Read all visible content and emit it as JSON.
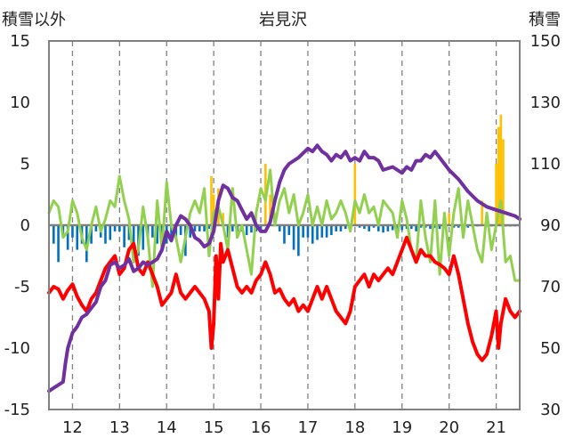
{
  "chart_data": {
    "type": "line",
    "title": "岩見沢",
    "ylabel_left": "積雪以外",
    "ylabel_right": "積雪",
    "xlim": [
      11.5,
      21.5
    ],
    "ylim_left": [
      -15,
      15
    ],
    "ylim_right": [
      30,
      150
    ],
    "x_ticks": [
      12,
      13,
      14,
      15,
      16,
      17,
      18,
      19,
      20,
      21
    ],
    "y_ticks_left": [
      15,
      10,
      5,
      0,
      -5,
      -10,
      -15
    ],
    "y_ticks_right": [
      150,
      130,
      110,
      90,
      70,
      50,
      30
    ],
    "grid": {
      "vertical": "dashed",
      "horizontal": "none"
    },
    "colors": {
      "snow_depth": "#7030a0",
      "temperature": "#ff0000",
      "green_series": "#92d050",
      "bars_negative": "#0070c0",
      "bars_positive": "#ffc000",
      "zero_line": "#7f7f7f",
      "frame": "#808080",
      "grid": "#808080"
    },
    "series": [
      {
        "axis": "right",
        "color": "purple",
        "x": [
          11.5,
          11.6,
          11.7,
          11.8,
          11.85,
          11.9,
          12.0,
          12.1,
          12.2,
          12.3,
          12.4,
          12.5,
          12.6,
          12.7,
          12.8,
          12.9,
          13.0,
          13.1,
          13.2,
          13.3,
          13.4,
          13.5,
          13.6,
          13.7,
          13.8,
          13.9,
          14.0,
          14.1,
          14.2,
          14.3,
          14.4,
          14.5,
          14.6,
          14.7,
          14.8,
          14.9,
          15.0,
          15.1,
          15.2,
          15.3,
          15.4,
          15.5,
          15.6,
          15.7,
          15.8,
          15.9,
          16.0,
          16.1,
          16.2,
          16.3,
          16.4,
          16.5,
          16.6,
          16.8,
          17.0,
          17.1,
          17.2,
          17.3,
          17.4,
          17.5,
          17.6,
          17.7,
          17.8,
          17.9,
          18.0,
          18.1,
          18.2,
          18.3,
          18.4,
          18.5,
          18.6,
          18.8,
          19.0,
          19.1,
          19.2,
          19.3,
          19.4,
          19.5,
          19.6,
          19.7,
          19.8,
          19.9,
          20.0,
          20.2,
          20.4,
          20.6,
          20.8,
          21.0,
          21.2,
          21.4,
          21.5
        ],
        "y": [
          36,
          37,
          38,
          39,
          45,
          50,
          55,
          57,
          60,
          61,
          63,
          65,
          70,
          72,
          77,
          78,
          76,
          77,
          79,
          75,
          76,
          78,
          77,
          78,
          79,
          82,
          88,
          85,
          90,
          93,
          92,
          90,
          86,
          85,
          83,
          84,
          88,
          98,
          103,
          102,
          99,
          98,
          95,
          92,
          94,
          90,
          88,
          88,
          91,
          98,
          104,
          108,
          110,
          112,
          115,
          114,
          116,
          114,
          113,
          111,
          113,
          112,
          114,
          111,
          112,
          111,
          114,
          112,
          112,
          111,
          108,
          109,
          107,
          109,
          108,
          111,
          111,
          113,
          112,
          114,
          112,
          110,
          108,
          105,
          101,
          98,
          96,
          95,
          94,
          93,
          92
        ]
      },
      {
        "axis": "left",
        "color": "red",
        "x": [
          11.5,
          11.6,
          11.7,
          11.8,
          11.9,
          12.0,
          12.1,
          12.2,
          12.3,
          12.4,
          12.5,
          12.6,
          12.7,
          12.8,
          12.9,
          13.0,
          13.1,
          13.2,
          13.3,
          13.4,
          13.5,
          13.6,
          13.7,
          13.8,
          13.9,
          14.0,
          14.1,
          14.2,
          14.3,
          14.4,
          14.5,
          14.6,
          14.7,
          14.8,
          14.9,
          14.95,
          15.0,
          15.05,
          15.1,
          15.15,
          15.2,
          15.3,
          15.4,
          15.5,
          15.6,
          15.7,
          15.8,
          15.9,
          16.0,
          16.1,
          16.2,
          16.3,
          16.4,
          16.5,
          16.6,
          16.7,
          16.8,
          16.9,
          17.0,
          17.1,
          17.2,
          17.3,
          17.4,
          17.5,
          17.6,
          17.7,
          17.8,
          17.9,
          18.0,
          18.1,
          18.2,
          18.3,
          18.4,
          18.5,
          18.6,
          18.7,
          18.8,
          18.9,
          19.0,
          19.1,
          19.2,
          19.3,
          19.4,
          19.5,
          19.6,
          19.7,
          19.8,
          19.9,
          20.0,
          20.1,
          20.2,
          20.3,
          20.4,
          20.5,
          20.6,
          20.7,
          20.8,
          20.9,
          21.0,
          21.05,
          21.1,
          21.2,
          21.3,
          21.4,
          21.5
        ],
        "y": [
          -5.5,
          -5,
          -5.2,
          -6,
          -5.3,
          -4.8,
          -5.8,
          -6.5,
          -7,
          -6,
          -5.5,
          -4.5,
          -3.5,
          -3,
          -2.5,
          -4,
          -3.5,
          -2,
          -1.5,
          -3.5,
          -4,
          -3,
          -4,
          -5,
          -6.5,
          -6,
          -5.5,
          -4,
          -5.5,
          -6,
          -5.5,
          -5,
          -5.5,
          -6,
          -7,
          -10,
          -8,
          -2.5,
          -6,
          -1.5,
          -3,
          -2,
          -3.5,
          -5,
          -5.5,
          -5,
          -5.5,
          -4.5,
          -4,
          -3,
          -4,
          -5.5,
          -5.2,
          -6,
          -6.5,
          -6,
          -7,
          -6.5,
          -7,
          -6,
          -5,
          -6,
          -5,
          -6,
          -7,
          -7.5,
          -8,
          -7,
          -5,
          -4.5,
          -4,
          -5,
          -4,
          -4.5,
          -4,
          -3.5,
          -4,
          -3,
          -2,
          -1,
          -2,
          -3,
          -2,
          -2.5,
          -2.5,
          -3,
          -3.2,
          -3.5,
          -4,
          -2.5,
          -4,
          -6,
          -8,
          -9.5,
          -10.5,
          -11,
          -10.5,
          -9,
          -7,
          -10,
          -8,
          -6,
          -7,
          -7.5,
          -7
        ]
      },
      {
        "axis": "left",
        "color": "green",
        "x": [
          11.5,
          11.6,
          11.7,
          11.8,
          11.9,
          12.0,
          12.1,
          12.2,
          12.3,
          12.4,
          12.5,
          12.6,
          12.7,
          12.8,
          12.9,
          13.0,
          13.1,
          13.2,
          13.3,
          13.4,
          13.5,
          13.6,
          13.7,
          13.8,
          13.9,
          14.0,
          14.1,
          14.2,
          14.3,
          14.4,
          14.5,
          14.6,
          14.7,
          14.8,
          14.9,
          15.0,
          15.1,
          15.2,
          15.3,
          15.4,
          15.5,
          15.6,
          15.7,
          15.8,
          15.9,
          16.0,
          16.1,
          16.2,
          16.3,
          16.4,
          16.5,
          16.6,
          16.7,
          16.8,
          16.9,
          17.0,
          17.1,
          17.2,
          17.3,
          17.4,
          17.5,
          17.6,
          17.7,
          17.8,
          17.9,
          18.0,
          18.1,
          18.2,
          18.3,
          18.4,
          18.5,
          18.6,
          18.7,
          18.8,
          18.9,
          19.0,
          19.1,
          19.2,
          19.3,
          19.4,
          19.5,
          19.6,
          19.7,
          19.8,
          19.9,
          20.0,
          20.1,
          20.2,
          20.3,
          20.4,
          20.5,
          20.6,
          20.7,
          20.8,
          20.9,
          21.0,
          21.1,
          21.2,
          21.3,
          21.4,
          21.5
        ],
        "y": [
          1,
          2,
          1.5,
          -1,
          -0.5,
          2,
          1,
          -1,
          -2,
          0,
          1.5,
          -0.5,
          0.5,
          2,
          1.5,
          4,
          2,
          0.5,
          -3,
          -2,
          1.5,
          -1,
          -5,
          2,
          -2,
          3.5,
          0,
          -1,
          -3,
          -1,
          1,
          2,
          1,
          3,
          -2.5,
          1,
          1.5,
          0,
          -2,
          3,
          -1,
          0,
          -2,
          -4,
          1,
          3,
          2,
          4.5,
          0,
          2,
          3,
          1,
          2.5,
          0,
          1,
          2.5,
          0,
          1.5,
          0,
          2,
          0.5,
          1,
          2,
          1,
          -0.5,
          2,
          1,
          2.5,
          1,
          1.5,
          0,
          2,
          1.5,
          1,
          -1,
          2,
          0.5,
          -2,
          -3,
          2,
          -1,
          -3,
          2,
          -4,
          1,
          -2.5,
          1,
          3,
          -1,
          2,
          0,
          -2,
          -3,
          1,
          -2,
          0,
          2,
          -3,
          -2.5,
          -4.5,
          -4.5
        ]
      }
    ],
    "bars": {
      "axis": "left",
      "x": [
        11.6,
        11.7,
        11.8,
        11.9,
        12.0,
        12.1,
        12.2,
        12.3,
        12.4,
        12.5,
        12.6,
        12.7,
        12.8,
        12.9,
        13.0,
        13.1,
        13.2,
        13.3,
        13.4,
        13.5,
        13.6,
        13.7,
        13.8,
        13.9,
        14.0,
        14.1,
        14.2,
        14.3,
        14.4,
        14.5,
        14.6,
        14.7,
        14.8,
        14.9,
        14.95,
        15.0,
        15.1,
        15.2,
        15.3,
        15.4,
        15.5,
        15.6,
        15.7,
        15.8,
        15.9,
        16.0,
        16.1,
        16.2,
        16.3,
        16.4,
        16.5,
        16.6,
        16.7,
        16.8,
        16.9,
        17.0,
        17.1,
        17.2,
        17.3,
        17.4,
        17.5,
        17.6,
        17.7,
        17.8,
        17.9,
        18.0,
        18.1,
        18.2,
        18.3,
        18.4,
        18.5,
        18.6,
        18.7,
        18.8,
        18.9,
        19.0,
        19.1,
        19.2,
        19.3,
        19.4,
        19.5,
        19.6,
        19.7,
        19.8,
        19.9,
        20.0,
        20.1,
        20.2,
        20.3,
        20.4,
        20.5,
        20.6,
        20.7,
        20.8,
        20.9,
        21.0,
        21.05,
        21.1,
        21.15,
        21.2,
        21.3,
        21.4
      ],
      "y": [
        -1.5,
        -3,
        -1,
        -2,
        -1,
        -2,
        -1.5,
        -3,
        -1.5,
        -0.5,
        -1,
        -1.5,
        -1.2,
        -0.5,
        -0.5,
        -1.8,
        -1.2,
        -1.6,
        -2.5,
        -2,
        -1,
        -1,
        -1.5,
        -2.2,
        -1.5,
        -1,
        -1.2,
        -0.8,
        -2.5,
        -1,
        -0.5,
        -0.5,
        -0.5,
        -0.3,
        4,
        2.5,
        3,
        1,
        -1,
        -0.5,
        -1,
        -0.5,
        -0.8,
        -0.6,
        -0.5,
        -0.4,
        5,
        2.5,
        1,
        -0.5,
        -1.5,
        -0.8,
        -2,
        -2.5,
        -1,
        -1,
        -1.5,
        -1.2,
        -1,
        -1,
        -0.8,
        -0.5,
        -0.5,
        -0.3,
        -0.3,
        5,
        -0.2,
        -0.3,
        -0.5,
        -0.2,
        -0.5,
        -0.6,
        -0.5,
        -0.4,
        -0.5,
        -0.4,
        -0.3,
        -0.3,
        -0.5,
        -0.2,
        -0.2,
        -0.3,
        -0.2,
        -0.3,
        -0.2,
        1,
        -0.2,
        -0.2,
        -0.2,
        -0.2,
        -0.1,
        -0.1,
        2,
        -0.1,
        -0.1,
        5,
        8,
        9,
        7,
        -0.1,
        -0.1,
        -0.1
      ]
    }
  }
}
